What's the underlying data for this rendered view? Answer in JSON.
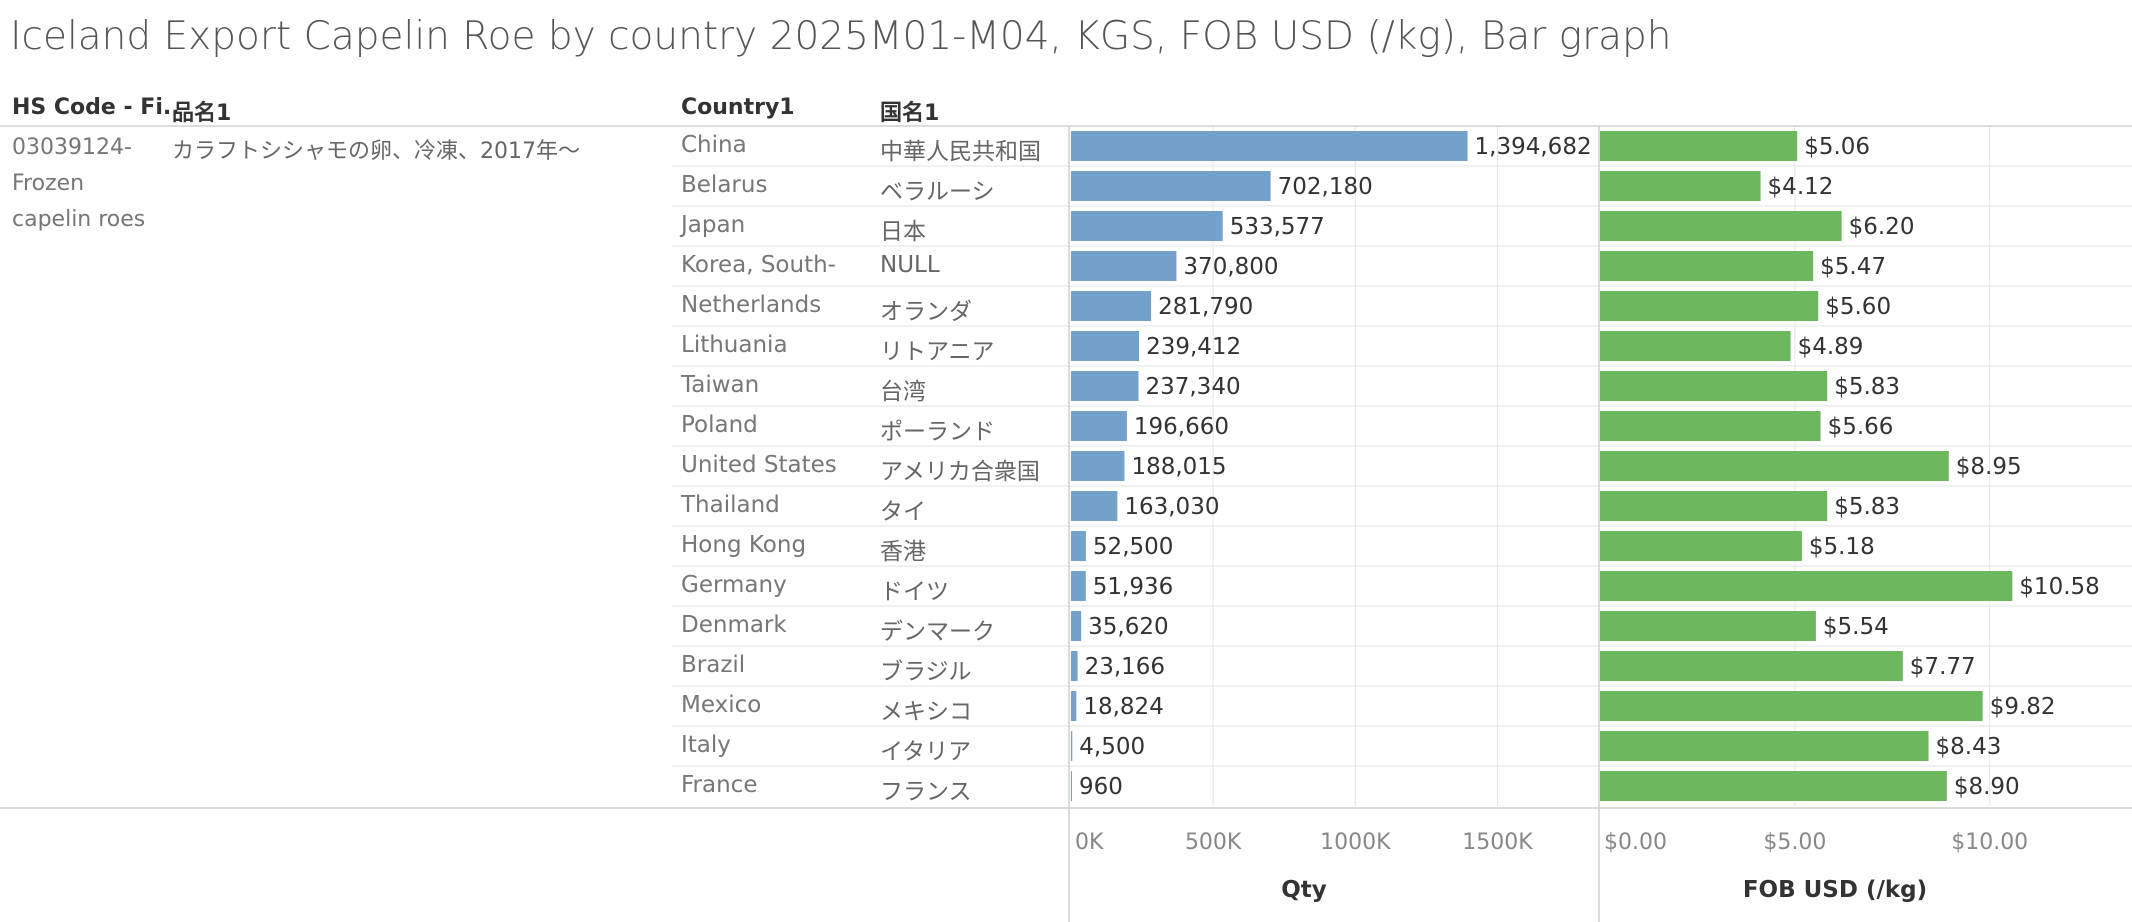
{
  "title": "Iceland Export Capelin Roe by country 2025M01-M04, KGS, FOB USD (/kg), Bar graph",
  "headers": {
    "hs_code": "HS Code - Fi..",
    "item_name": "品名1",
    "country": "Country1",
    "country_jp": "国名1"
  },
  "hs_code_lines": [
    "03039124-",
    "Frozen",
    "capelin roes"
  ],
  "item_name_jp": "カラフトシシャモの卵、冷凍、2017年～",
  "colors": {
    "qty_bar": "#74a1c9",
    "fob_bar": "#6db75f",
    "grid": "#e6e6e6",
    "separator": "#d0d0d0"
  },
  "chart_data": [
    {
      "type": "bar",
      "orientation": "horizontal",
      "xlabel": "Qty",
      "xlim": [
        0,
        1850000
      ],
      "ticks": [
        0,
        500000,
        1000000,
        1500000
      ],
      "tick_labels": [
        "0K",
        "500K",
        "1000K",
        "1500K"
      ],
      "categories": [
        "China",
        "Belarus",
        "Japan",
        "Korea, South-",
        "Netherlands",
        "Lithuania",
        "Taiwan",
        "Poland",
        "United States",
        "Thailand",
        "Hong Kong",
        "Germany",
        "Denmark",
        "Brazil",
        "Mexico",
        "Italy",
        "France"
      ],
      "categories_jp": [
        "中華人民共和国",
        "ベラルーシ",
        "日本",
        "NULL",
        "オランダ",
        "リトアニア",
        "台湾",
        "ポーランド",
        "アメリカ合衆国",
        "タイ",
        "香港",
        "ドイツ",
        "デンマーク",
        "ブラジル",
        "メキシコ",
        "イタリア",
        "フランス"
      ],
      "values": [
        1394682,
        702180,
        533577,
        370800,
        281790,
        239412,
        237340,
        196660,
        188015,
        163030,
        52500,
        51936,
        35620,
        23166,
        18824,
        4500,
        960
      ],
      "value_labels": [
        "1,394,682",
        "702,180",
        "533,577",
        "370,800",
        "281,790",
        "239,412",
        "237,340",
        "196,660",
        "188,015",
        "163,030",
        "52,500",
        "51,936",
        "35,620",
        "23,166",
        "18,824",
        "4,500",
        "960"
      ]
    },
    {
      "type": "bar",
      "orientation": "horizontal",
      "xlabel": "FOB USD (/kg)",
      "xlim": [
        0,
        13.6
      ],
      "ticks": [
        0,
        5,
        10
      ],
      "tick_labels": [
        "$0.00",
        "$5.00",
        "$10.00"
      ],
      "categories": [
        "China",
        "Belarus",
        "Japan",
        "Korea, South-",
        "Netherlands",
        "Lithuania",
        "Taiwan",
        "Poland",
        "United States",
        "Thailand",
        "Hong Kong",
        "Germany",
        "Denmark",
        "Brazil",
        "Mexico",
        "Italy",
        "France"
      ],
      "values": [
        5.06,
        4.12,
        6.2,
        5.47,
        5.6,
        4.89,
        5.83,
        5.66,
        8.95,
        5.83,
        5.18,
        10.58,
        5.54,
        7.77,
        9.82,
        8.43,
        8.9
      ],
      "value_labels": [
        "$5.06",
        "$4.12",
        "$6.20",
        "$5.47",
        "$5.60",
        "$4.89",
        "$5.83",
        "$5.66",
        "$8.95",
        "$5.83",
        "$5.18",
        "$10.58",
        "$5.54",
        "$7.77",
        "$9.82",
        "$8.43",
        "$8.90"
      ]
    }
  ]
}
